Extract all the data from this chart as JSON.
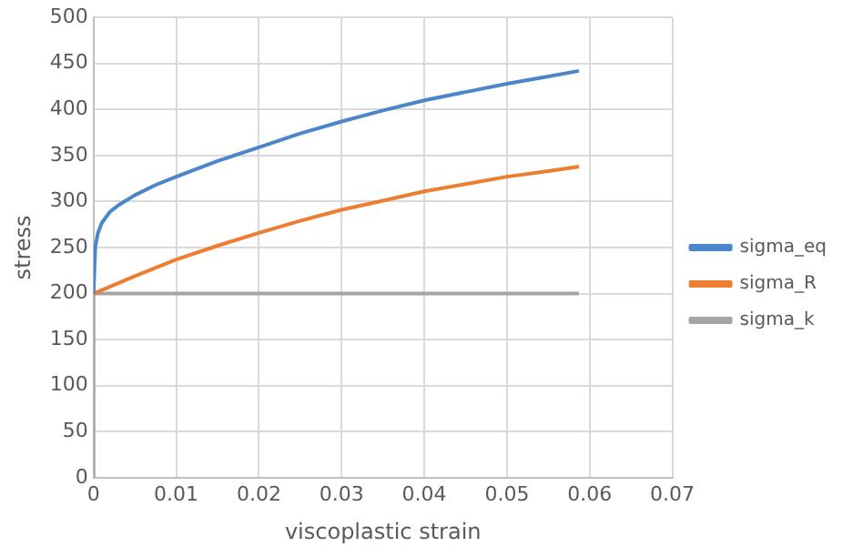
{
  "chart_data": {
    "type": "line",
    "xlabel": "viscoplastic strain",
    "ylabel": "stress",
    "xlim": [
      0,
      0.07
    ],
    "xticks": [
      0,
      0.01,
      0.02,
      0.03,
      0.04,
      0.05,
      0.06,
      0.07
    ],
    "ylim": [
      0,
      500
    ],
    "yticks": [
      0,
      50,
      100,
      150,
      200,
      250,
      300,
      350,
      400,
      450,
      500
    ],
    "grid": true,
    "legend": "right",
    "marker": "none",
    "line_style": "solid",
    "series": [
      {
        "name": "sigma_eq",
        "color": "#4a86c8",
        "x": [
          0,
          0.0002,
          0.0005,
          0.001,
          0.002,
          0.003,
          0.005,
          0.0075,
          0.01,
          0.015,
          0.02,
          0.025,
          0.03,
          0.035,
          0.04,
          0.045,
          0.05,
          0.055,
          0.0587
        ],
        "values": [
          200,
          250,
          265,
          277,
          289,
          296,
          307,
          318,
          327,
          344,
          359,
          374,
          387,
          399,
          410,
          419,
          428,
          436,
          442
        ]
      },
      {
        "name": "sigma_R",
        "color": "#ed7d31",
        "x": [
          0,
          0.005,
          0.01,
          0.015,
          0.02,
          0.025,
          0.03,
          0.035,
          0.04,
          0.045,
          0.05,
          0.055,
          0.0587
        ],
        "values": [
          200,
          219,
          237,
          252,
          266,
          279,
          291,
          301,
          311,
          319,
          327,
          333,
          338
        ]
      },
      {
        "name": "sigma_k",
        "color": "#a5a5a5",
        "x": [
          0,
          0,
          0.0587
        ],
        "values": [
          0,
          200,
          200
        ]
      }
    ]
  }
}
